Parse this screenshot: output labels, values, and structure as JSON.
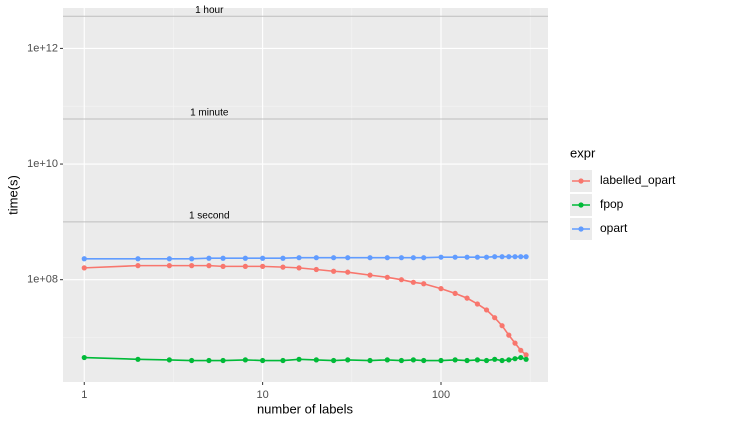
{
  "chart_data": {
    "type": "line",
    "x_label": "number of labels",
    "y_label": "time(s)",
    "log_x": true,
    "log_y": true,
    "grid": true,
    "xlim": [
      0.76,
      398
    ],
    "ylim": [
      1700000,
      5000000000000
    ],
    "xticks": [
      1,
      10,
      100
    ],
    "yticks": [
      {
        "value": 100000000,
        "label": "1e+08"
      },
      {
        "value": 10000000000,
        "label": "1e+10"
      },
      {
        "value": 1000000000000,
        "label": "1e+12"
      }
    ],
    "reference_lines": [
      {
        "value": 3600000000000,
        "label": "1 hour"
      },
      {
        "value": 60000000000,
        "label": "1 minute"
      },
      {
        "value": 1000000000,
        "label": "1 second"
      }
    ],
    "legend_title": "expr",
    "legend_position": "right",
    "x": [
      1,
      2,
      3,
      4,
      5,
      6,
      8,
      10,
      13,
      16,
      20,
      25,
      30,
      40,
      50,
      60,
      70,
      80,
      100,
      120,
      140,
      160,
      180,
      200,
      220,
      240,
      260,
      280,
      300
    ],
    "series": [
      {
        "name": "labelled_opart",
        "color": "#F8766D",
        "values": [
          160000000,
          175000000,
          175000000,
          175000000,
          175000000,
          170000000,
          170000000,
          170000000,
          165000000,
          160000000,
          150000000,
          140000000,
          135000000,
          120000000,
          110000000,
          100000000,
          90000000,
          85000000,
          70000000,
          58000000,
          48000000,
          38000000,
          30000000,
          22000000,
          16000000,
          11000000,
          8000000,
          6000000,
          5000000
        ]
      },
      {
        "name": "fpop",
        "color": "#00BA38",
        "values": [
          4500000,
          4200000,
          4100000,
          4000000,
          4000000,
          4000000,
          4100000,
          4000000,
          4000000,
          4200000,
          4100000,
          4000000,
          4100000,
          4000000,
          4100000,
          4000000,
          4100000,
          4000000,
          4000000,
          4100000,
          4000000,
          4100000,
          4000000,
          4200000,
          4000000,
          4100000,
          4300000,
          4500000,
          4200000
        ]
      },
      {
        "name": "opart",
        "color": "#619CFF",
        "values": [
          230000000,
          230000000,
          230000000,
          230000000,
          235000000,
          235000000,
          235000000,
          235000000,
          235000000,
          240000000,
          240000000,
          240000000,
          240000000,
          240000000,
          240000000,
          240000000,
          240000000,
          240000000,
          245000000,
          245000000,
          245000000,
          245000000,
          245000000,
          250000000,
          250000000,
          250000000,
          250000000,
          250000000,
          250000000
        ]
      }
    ]
  }
}
